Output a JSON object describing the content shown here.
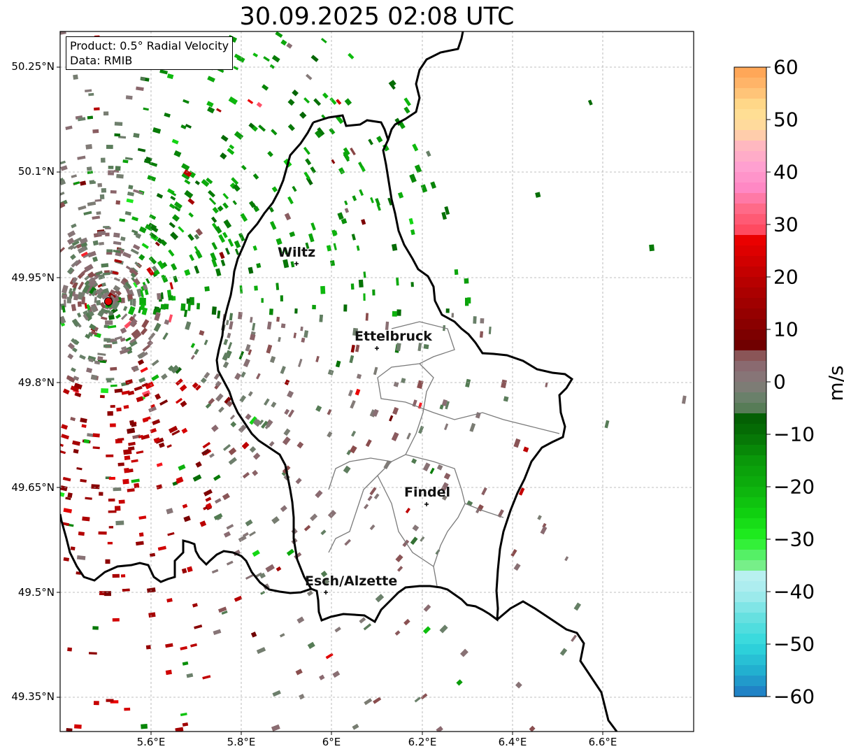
{
  "title": "30.09.2025 02:08 UTC",
  "info": {
    "product": "Product: 0.5° Radial Velocity",
    "data_source": "Data: RMIB"
  },
  "axes": {
    "lon_ticks": [
      "5.6°E",
      "5.8°E",
      "6°E",
      "6.2°E",
      "6.4°E",
      "6.6°E"
    ],
    "lat_ticks": [
      "50.25°N",
      "50.1°N",
      "49.95°N",
      "49.8°N",
      "49.65°N",
      "49.5°N",
      "49.35°N"
    ]
  },
  "cities": [
    "Wiltz",
    "Ettelbruck",
    "Findel",
    "Esch/Alzette"
  ],
  "colorbar": {
    "unit": "m/s",
    "ticks": [
      "60",
      "50",
      "40",
      "30",
      "20",
      "10",
      "0",
      "−10",
      "−20",
      "−30",
      "−40",
      "−50",
      "−60"
    ],
    "min": -60,
    "max": 60
  },
  "colors": {
    "approaching_green": "#0a7a0a",
    "receding_red": "#c80000",
    "near_zero": "#8a7878",
    "radar_site": "#e00000"
  }
}
